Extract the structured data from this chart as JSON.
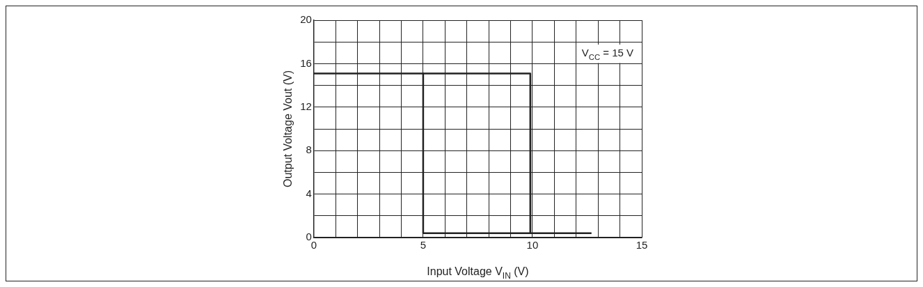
{
  "chart_data": {
    "type": "line",
    "xlabel": "Input Voltage V$_{IN}$ (V)",
    "ylabel": "Output Voltage Vout (V)",
    "annotations": [
      "V$_{CC}$ = 15 V"
    ],
    "series": [
      {
        "color": "#222222",
        "x": [
          0,
          9.9,
          9.9,
          12.7
        ],
        "values": [
          15.1,
          15.1,
          0.4,
          0.4
        ]
      },
      {
        "color": "#222222",
        "x": [
          5,
          5,
          9.9
        ],
        "values": [
          15.1,
          0.4,
          0.4
        ]
      }
    ],
    "xlim": [
      0,
      15
    ],
    "xticks": [
      0,
      {
        "value": 1,
        "label": null
      },
      {
        "value": 2,
        "label": null
      },
      {
        "value": 3,
        "label": null
      },
      {
        "value": 4,
        "label": null
      },
      5,
      {
        "value": 6,
        "label": null
      },
      {
        "value": 7,
        "label": null
      },
      {
        "value": 8,
        "label": null
      },
      {
        "value": 9,
        "label": null
      },
      10,
      {
        "value": 11,
        "label": null
      },
      {
        "value": 12,
        "label": null
      },
      {
        "value": 13,
        "label": null
      },
      {
        "value": 14,
        "label": null
      },
      15
    ],
    "ylim": [
      0,
      20
    ],
    "yticks": [
      0,
      {
        "value": 2,
        "label": null
      },
      4,
      {
        "value": 6,
        "label": null
      },
      8,
      {
        "value": 10,
        "label": null
      },
      12,
      {
        "value": 14,
        "label": null
      },
      16,
      {
        "value": 18,
        "label": null
      },
      20
    ],
    "grid": true,
    "legend": false,
    "marker": "none",
    "line_style": "solid"
  }
}
